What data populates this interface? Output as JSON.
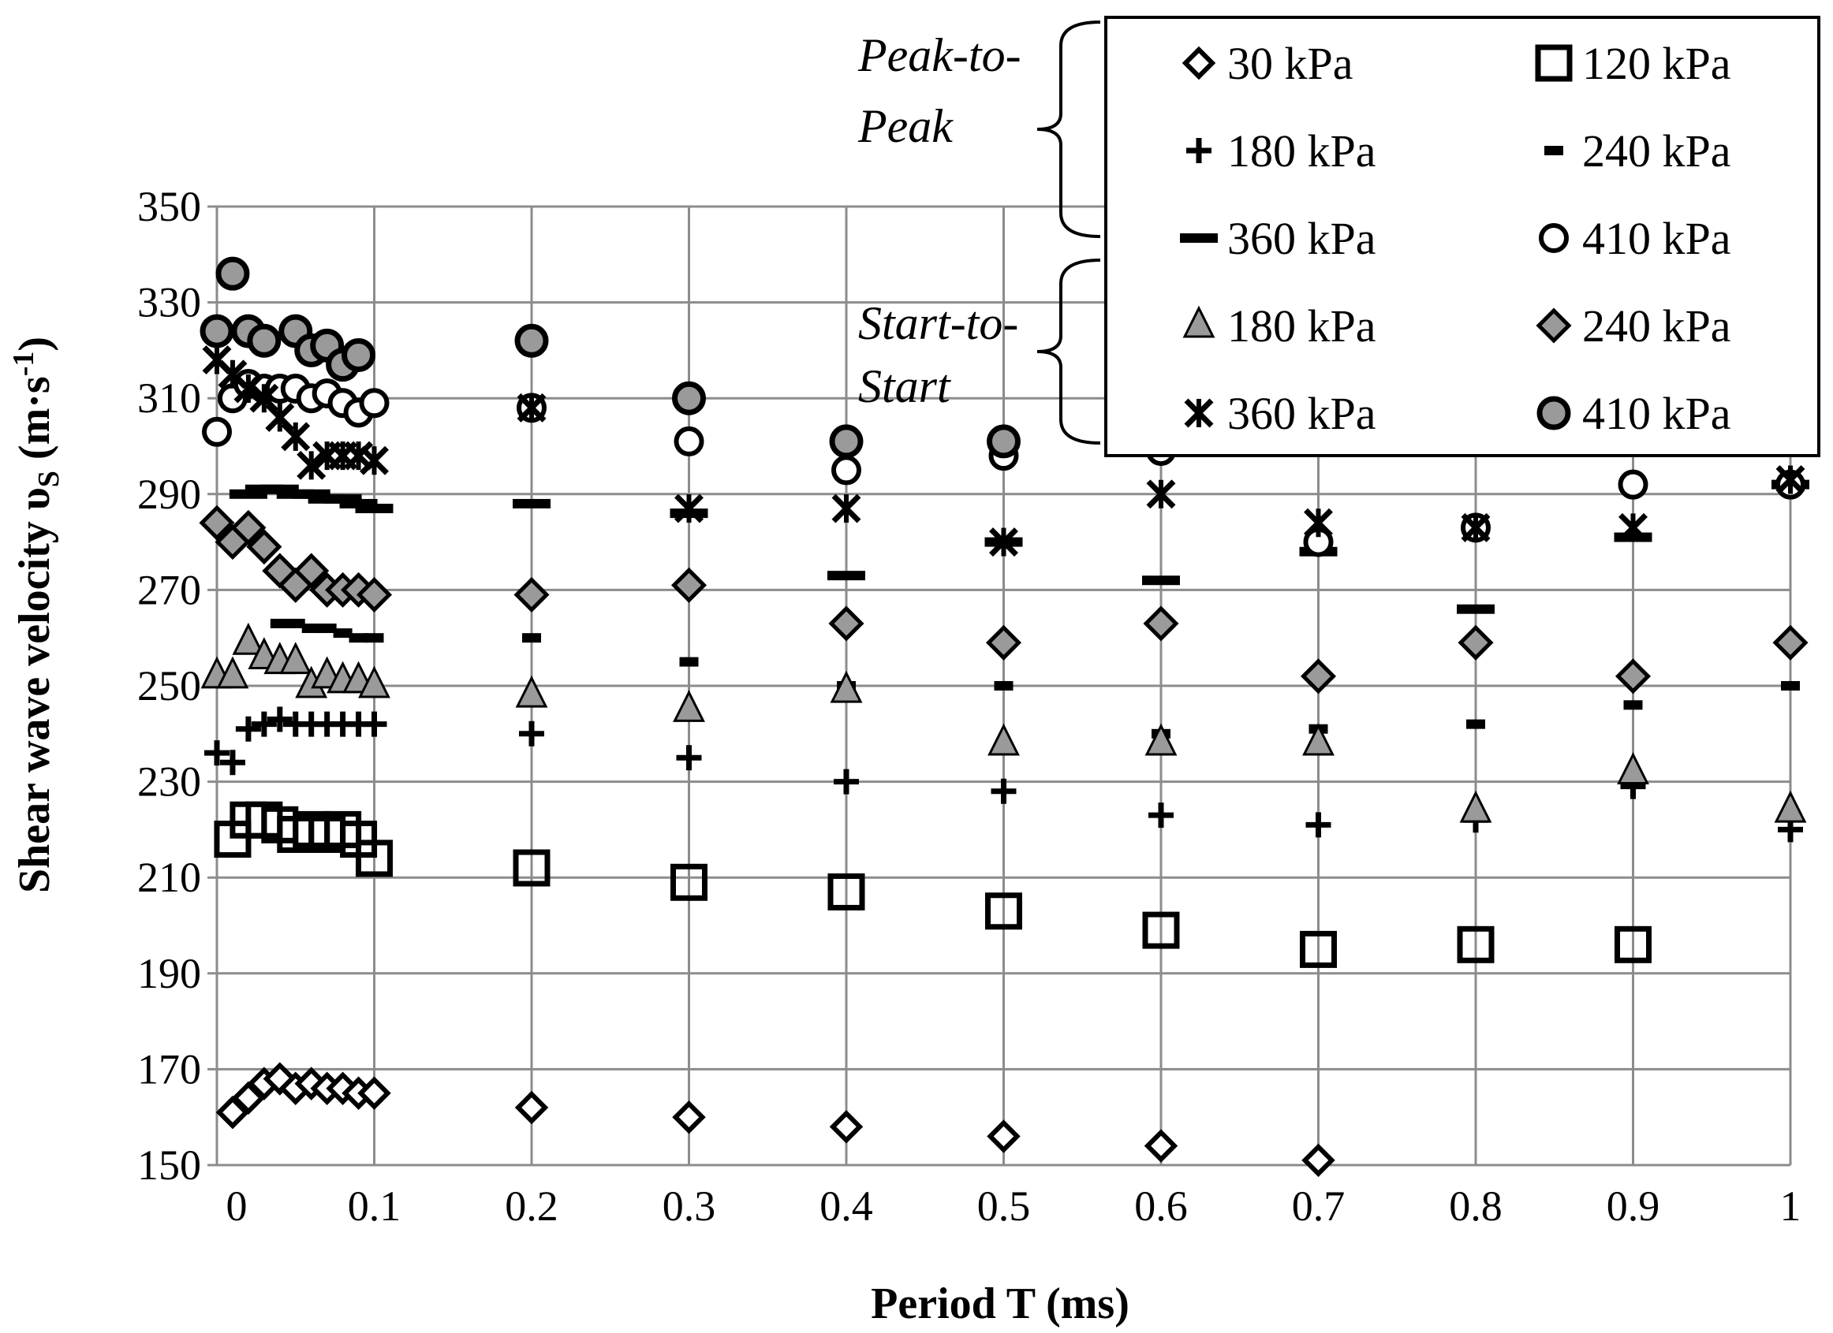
{
  "chart_data": {
    "type": "scatter",
    "xlabel": "Period T (ms)",
    "ylabel": "Shear wave velocity υS (m·s⁻¹)",
    "ylabel_parts": {
      "main": "Shear wave velocity υ",
      "sub": "S",
      "unit_open": " (m·s",
      "sup": "-1",
      "unit_close": ")"
    },
    "xlim": [
      0,
      1
    ],
    "ylim": [
      150,
      350
    ],
    "x_ticks": [
      "0",
      "0.1",
      "0.2",
      "0.3",
      "0.4",
      "0.5",
      "0.6",
      "0.7",
      "0.8",
      "0.9",
      "1"
    ],
    "y_ticks": [
      "150",
      "170",
      "190",
      "210",
      "230",
      "250",
      "270",
      "290",
      "310",
      "330",
      "350"
    ],
    "grid": true,
    "legend_position": "top-right",
    "legend_groups": [
      {
        "label_lines": [
          "Peak-to-",
          "Peak"
        ],
        "series_indices": [
          0,
          1,
          2,
          3,
          4,
          5
        ]
      },
      {
        "label_lines": [
          "Start-to-",
          "Start"
        ],
        "series_indices": [
          6,
          7,
          8,
          9
        ]
      }
    ],
    "series": [
      {
        "name": "30 kPa",
        "marker": "diamond-open",
        "points": [
          [
            0.01,
            161
          ],
          [
            0.02,
            164
          ],
          [
            0.03,
            167
          ],
          [
            0.04,
            168
          ],
          [
            0.05,
            166
          ],
          [
            0.06,
            167
          ],
          [
            0.07,
            166
          ],
          [
            0.08,
            166
          ],
          [
            0.09,
            165
          ],
          [
            0.1,
            165
          ],
          [
            0.2,
            162
          ],
          [
            0.3,
            160
          ],
          [
            0.4,
            158
          ],
          [
            0.5,
            156
          ],
          [
            0.6,
            154
          ],
          [
            0.7,
            151
          ]
        ]
      },
      {
        "name": "120 kPa",
        "marker": "square-open",
        "points": [
          [
            0.01,
            218
          ],
          [
            0.02,
            222
          ],
          [
            0.03,
            222
          ],
          [
            0.04,
            221
          ],
          [
            0.05,
            219
          ],
          [
            0.06,
            220
          ],
          [
            0.07,
            219
          ],
          [
            0.08,
            220
          ],
          [
            0.09,
            218
          ],
          [
            0.1,
            214
          ],
          [
            0.2,
            212
          ],
          [
            0.3,
            209
          ],
          [
            0.4,
            207
          ],
          [
            0.5,
            203
          ],
          [
            0.6,
            199
          ],
          [
            0.7,
            195
          ],
          [
            0.8,
            196
          ],
          [
            0.9,
            196
          ]
        ]
      },
      {
        "name": "180 kPa",
        "marker": "plus",
        "points": [
          [
            0.0,
            236
          ],
          [
            0.01,
            234
          ],
          [
            0.02,
            241
          ],
          [
            0.03,
            242
          ],
          [
            0.04,
            243
          ],
          [
            0.05,
            242
          ],
          [
            0.06,
            242
          ],
          [
            0.07,
            242
          ],
          [
            0.08,
            242
          ],
          [
            0.09,
            242
          ],
          [
            0.1,
            242
          ],
          [
            0.2,
            240
          ],
          [
            0.3,
            235
          ],
          [
            0.4,
            230
          ],
          [
            0.5,
            228
          ],
          [
            0.6,
            223
          ],
          [
            0.7,
            221
          ],
          [
            0.8,
            222
          ],
          [
            0.9,
            229
          ],
          [
            1.0,
            220
          ]
        ]
      },
      {
        "name": "240 kPa",
        "marker": "dash-small",
        "points": [
          [
            0.04,
            263
          ],
          [
            0.05,
            263
          ],
          [
            0.06,
            262
          ],
          [
            0.07,
            262
          ],
          [
            0.08,
            261
          ],
          [
            0.09,
            260
          ],
          [
            0.1,
            260
          ],
          [
            0.2,
            260
          ],
          [
            0.3,
            255
          ],
          [
            0.4,
            250
          ],
          [
            0.5,
            250
          ],
          [
            0.6,
            240
          ],
          [
            0.7,
            241
          ],
          [
            0.8,
            242
          ],
          [
            0.9,
            246
          ],
          [
            1.0,
            250
          ]
        ]
      },
      {
        "name": "360 kPa",
        "marker": "dash",
        "points": [
          [
            0.02,
            290
          ],
          [
            0.03,
            291
          ],
          [
            0.04,
            291
          ],
          [
            0.05,
            290
          ],
          [
            0.06,
            290
          ],
          [
            0.07,
            289
          ],
          [
            0.08,
            289
          ],
          [
            0.09,
            288
          ],
          [
            0.1,
            287
          ],
          [
            0.2,
            288
          ],
          [
            0.3,
            286
          ],
          [
            0.4,
            273
          ],
          [
            0.5,
            280
          ],
          [
            0.6,
            272
          ],
          [
            0.7,
            278
          ],
          [
            0.8,
            266
          ],
          [
            0.9,
            281
          ],
          [
            1.0,
            292
          ]
        ]
      },
      {
        "name": "410 kPa",
        "marker": "circle-open",
        "points": [
          [
            0.0,
            303
          ],
          [
            0.01,
            310
          ],
          [
            0.02,
            313
          ],
          [
            0.03,
            312
          ],
          [
            0.04,
            312
          ],
          [
            0.05,
            312
          ],
          [
            0.06,
            310
          ],
          [
            0.07,
            311
          ],
          [
            0.08,
            309
          ],
          [
            0.09,
            307
          ],
          [
            0.1,
            309
          ],
          [
            0.2,
            308
          ],
          [
            0.3,
            301
          ],
          [
            0.4,
            295
          ],
          [
            0.5,
            298
          ],
          [
            0.6,
            299
          ],
          [
            0.7,
            280
          ],
          [
            0.8,
            283
          ],
          [
            0.9,
            292
          ],
          [
            1.0,
            292
          ]
        ]
      },
      {
        "name": "180 kPa",
        "marker": "triangle-filled",
        "points": [
          [
            0.0,
            252
          ],
          [
            0.01,
            252
          ],
          [
            0.02,
            259
          ],
          [
            0.03,
            256
          ],
          [
            0.04,
            255
          ],
          [
            0.05,
            255
          ],
          [
            0.06,
            250
          ],
          [
            0.07,
            252
          ],
          [
            0.08,
            251
          ],
          [
            0.09,
            251
          ],
          [
            0.1,
            250
          ],
          [
            0.2,
            248
          ],
          [
            0.3,
            245
          ],
          [
            0.4,
            249
          ],
          [
            0.5,
            238
          ],
          [
            0.6,
            238
          ],
          [
            0.7,
            238
          ],
          [
            0.8,
            224
          ],
          [
            0.9,
            232
          ],
          [
            1.0,
            224
          ]
        ]
      },
      {
        "name": "240 kPa",
        "marker": "diamond-filled",
        "points": [
          [
            0.0,
            284
          ],
          [
            0.01,
            280
          ],
          [
            0.02,
            283
          ],
          [
            0.03,
            279
          ],
          [
            0.04,
            274
          ],
          [
            0.05,
            271
          ],
          [
            0.06,
            274
          ],
          [
            0.07,
            270
          ],
          [
            0.08,
            270
          ],
          [
            0.09,
            270
          ],
          [
            0.1,
            269
          ],
          [
            0.2,
            269
          ],
          [
            0.3,
            271
          ],
          [
            0.4,
            263
          ],
          [
            0.5,
            259
          ],
          [
            0.6,
            263
          ],
          [
            0.7,
            252
          ],
          [
            0.8,
            259
          ],
          [
            0.9,
            252
          ],
          [
            1.0,
            259
          ]
        ]
      },
      {
        "name": "360 kPa",
        "marker": "asterisk",
        "points": [
          [
            0.0,
            318
          ],
          [
            0.01,
            315
          ],
          [
            0.02,
            312
          ],
          [
            0.03,
            310
          ],
          [
            0.04,
            306
          ],
          [
            0.05,
            302
          ],
          [
            0.06,
            296
          ],
          [
            0.07,
            298
          ],
          [
            0.08,
            298
          ],
          [
            0.09,
            298
          ],
          [
            0.1,
            297
          ],
          [
            0.2,
            308
          ],
          [
            0.3,
            287
          ],
          [
            0.4,
            287
          ],
          [
            0.5,
            280
          ],
          [
            0.6,
            290
          ],
          [
            0.7,
            284
          ],
          [
            0.8,
            283
          ],
          [
            0.9,
            283
          ],
          [
            1.0,
            293
          ]
        ]
      },
      {
        "name": "410 kPa",
        "marker": "circle-filled",
        "points": [
          [
            0.01,
            336
          ],
          [
            0.0,
            324
          ],
          [
            0.02,
            324
          ],
          [
            0.03,
            322
          ],
          [
            0.05,
            324
          ],
          [
            0.06,
            320
          ],
          [
            0.07,
            321
          ],
          [
            0.08,
            317
          ],
          [
            0.09,
            319
          ],
          [
            0.2,
            322
          ],
          [
            0.3,
            310
          ],
          [
            0.4,
            301
          ],
          [
            0.5,
            301
          ]
        ]
      }
    ]
  }
}
